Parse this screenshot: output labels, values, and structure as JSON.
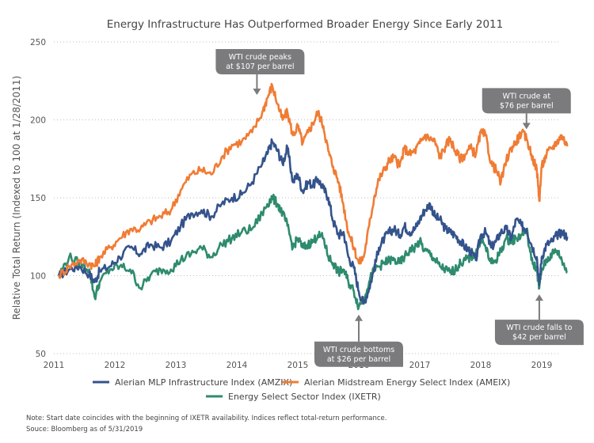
{
  "chart_data": {
    "type": "line",
    "title": "Energy Infrastructure Has Outperformed Broader Energy Since Early 2011",
    "xlabel": "",
    "ylabel": "Relative Total Return (Indexed to 100 at 1/28/2011)",
    "xlim": [
      2011.0,
      2019.42
    ],
    "ylim": [
      50,
      250
    ],
    "yticks": [
      50,
      100,
      150,
      200,
      250
    ],
    "xticks": [
      "2011",
      "2012",
      "2013",
      "2014",
      "2015",
      "2016",
      "2017",
      "2018",
      "2019"
    ],
    "grid": "horizontal-dotted",
    "legend_position": "bottom",
    "x": [
      2011.08,
      2011.25,
      2011.42,
      2011.58,
      2011.67,
      2011.75,
      2011.92,
      2012.08,
      2012.25,
      2012.42,
      2012.58,
      2012.75,
      2012.92,
      2013.08,
      2013.25,
      2013.42,
      2013.58,
      2013.75,
      2013.92,
      2014.08,
      2014.25,
      2014.42,
      2014.5,
      2014.58,
      2014.67,
      2014.75,
      2014.83,
      2014.92,
      2015.0,
      2015.08,
      2015.17,
      2015.25,
      2015.33,
      2015.42,
      2015.5,
      2015.58,
      2015.67,
      2015.75,
      2015.83,
      2015.92,
      2016.0,
      2016.08,
      2016.17,
      2016.25,
      2016.33,
      2016.42,
      2016.5,
      2016.58,
      2016.67,
      2016.75,
      2016.83,
      2016.92,
      2017.0,
      2017.08,
      2017.17,
      2017.25,
      2017.33,
      2017.42,
      2017.5,
      2017.58,
      2017.67,
      2017.75,
      2017.83,
      2017.92,
      2018.0,
      2018.08,
      2018.17,
      2018.25,
      2018.33,
      2018.42,
      2018.5,
      2018.58,
      2018.67,
      2018.75,
      2018.83,
      2018.92,
      2018.96,
      2019.0,
      2019.08,
      2019.17,
      2019.25,
      2019.33,
      2019.42
    ],
    "series": [
      {
        "name": "Alerian MLP Infrastructure Index (AMZIX)",
        "color": "#34538c",
        "values": [
          100,
          104,
          106,
          101,
          96,
          103,
          106,
          112,
          118,
          114,
          120,
          118,
          122,
          132,
          140,
          142,
          138,
          146,
          150,
          152,
          160,
          172,
          178,
          186,
          180,
          172,
          182,
          160,
          165,
          154,
          160,
          158,
          162,
          156,
          150,
          135,
          126,
          128,
          112,
          105,
          90,
          82,
          92,
          104,
          118,
          124,
          128,
          130,
          126,
          132,
          128,
          130,
          136,
          142,
          146,
          138,
          136,
          130,
          128,
          126,
          122,
          118,
          116,
          110,
          126,
          128,
          118,
          122,
          128,
          130,
          124,
          136,
          132,
          130,
          120,
          112,
          94,
          112,
          120,
          122,
          126,
          128,
          125
        ]
      },
      {
        "name": "Alerian Midstream Energy Select Index (AMEIX)",
        "color": "#f07c34",
        "values": [
          100,
          106,
          110,
          108,
          106,
          112,
          118,
          124,
          130,
          130,
          135,
          138,
          142,
          155,
          165,
          168,
          165,
          176,
          184,
          186,
          192,
          205,
          214,
          222,
          210,
          200,
          205,
          190,
          196,
          185,
          192,
          198,
          205,
          196,
          180,
          170,
          160,
          145,
          128,
          118,
          108,
          112,
          132,
          150,
          162,
          168,
          174,
          176,
          170,
          182,
          178,
          180,
          185,
          190,
          188,
          186,
          176,
          183,
          188,
          180,
          175,
          178,
          182,
          178,
          192,
          190,
          172,
          168,
          160,
          174,
          182,
          186,
          192,
          188,
          178,
          168,
          148,
          170,
          178,
          182,
          186,
          190,
          183
        ]
      },
      {
        "name": "Energy Select Sector Index (IXETR)",
        "color": "#2e8b6e",
        "values": [
          100,
          112,
          108,
          104,
          86,
          96,
          104,
          106,
          104,
          92,
          100,
          104,
          104,
          110,
          114,
          118,
          112,
          120,
          124,
          128,
          130,
          140,
          146,
          150,
          146,
          140,
          132,
          118,
          124,
          118,
          120,
          122,
          126,
          124,
          112,
          108,
          102,
          104,
          96,
          90,
          80,
          86,
          96,
          104,
          106,
          108,
          110,
          110,
          108,
          112,
          116,
          118,
          122,
          116,
          114,
          110,
          106,
          104,
          102,
          104,
          108,
          110,
          112,
          114,
          124,
          118,
          108,
          110,
          116,
          124,
          122,
          124,
          126,
          130,
          110,
          104,
          92,
          104,
          110,
          114,
          116,
          110,
          102
        ]
      }
    ],
    "annotations": [
      {
        "id": "peak",
        "lines": [
          "WTI crude peaks",
          "at $107 per barrel"
        ],
        "x": 2014.33,
        "y": 216,
        "arrow": "down"
      },
      {
        "id": "at76",
        "lines": [
          "WTI crude at",
          "$76 per barrel"
        ],
        "x": 2018.75,
        "y": 194,
        "arrow": "down"
      },
      {
        "id": "bottom",
        "lines": [
          "WTI crude bottoms",
          "at $26 per barrel"
        ],
        "x": 2016.0,
        "y": 75,
        "arrow": "up"
      },
      {
        "id": "falls",
        "lines": [
          "WTI crude falls to",
          "$42 per barrel"
        ],
        "x": 2018.96,
        "y": 88,
        "arrow": "up"
      }
    ]
  },
  "footer": {
    "note": "Note: Start date coincides with the beginning of IXETR availability. Indices reflect total-return performance.",
    "source": "Souce: Bloomberg as of 5/31/2019"
  },
  "colors": {
    "annotation_box": "#7b7b7d",
    "grid": "#bdbdbd"
  }
}
